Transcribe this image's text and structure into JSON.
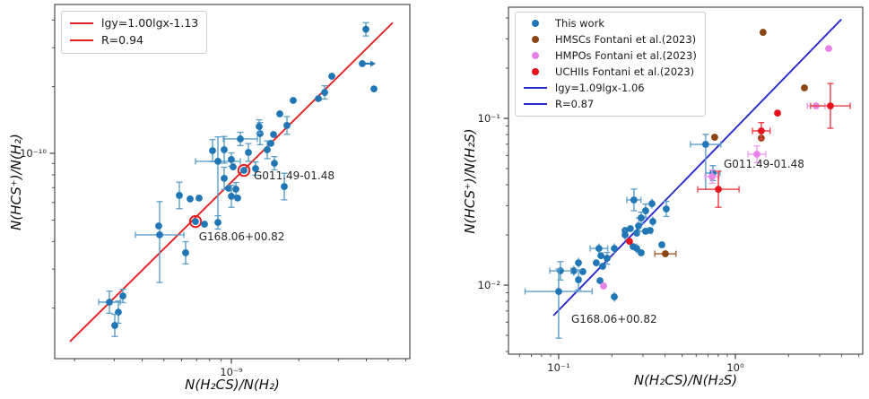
{
  "figure": {
    "background": "#ffffff",
    "frame_color": "#3c3c3c",
    "text_color": "#262626"
  },
  "chart_data": [
    {
      "id": "left-panel",
      "type": "scatter",
      "title": "",
      "xlabel": "N(H₂CS)/N(H₂)",
      "ylabel": "N(HCS⁺)/N(H₂)",
      "xscale": "log",
      "yscale": "log",
      "grid": false,
      "xlim_lg": [
        -9.788,
        -8.204
      ],
      "ylim_lg": [
        -10.927,
        -9.328
      ],
      "xticks": [
        {
          "lg": -9,
          "label": "10⁻⁹"
        }
      ],
      "yticks": [
        {
          "lg": -10,
          "label": "10⁻¹⁰"
        }
      ],
      "legend_position": "upper-left",
      "fit": {
        "label": "lgy=1.00lgx-1.13",
        "r_label": "R=0.94",
        "slope": 1.0,
        "intercept": -1.13,
        "color": "#e32020",
        "lgx_range": [
          -9.72,
          -8.28
        ]
      },
      "series": [
        {
          "name": "This work",
          "color": "#2176b5",
          "ecolor": "#5b9ec9",
          "marker": "circle",
          "points": [
            {
              "lgx": -8.4,
              "lgy": -9.44,
              "ey": 0.03
            },
            {
              "lgx": -8.416,
              "lgy": -9.595,
              "ar": true
            },
            {
              "lgx": -8.364,
              "lgy": -9.709
            },
            {
              "lgx": -8.552,
              "lgy": -9.652
            },
            {
              "lgx": -8.584,
              "lgy": -9.725,
              "ey": 0.03
            },
            {
              "lgx": -8.612,
              "lgy": -9.753
            },
            {
              "lgx": -8.724,
              "lgy": -9.761
            },
            {
              "lgx": -8.784,
              "lgy": -9.822
            },
            {
              "lgx": -8.752,
              "lgy": -9.874,
              "ey": 0.04
            },
            {
              "lgx": -8.812,
              "lgy": -9.915
            },
            {
              "lgx": -8.872,
              "lgy": -9.911,
              "ey": 0.05
            },
            {
              "lgx": -8.96,
              "lgy": -9.935,
              "ex": 0.076,
              "ey": 0.03
            },
            {
              "lgx": -8.924,
              "lgy": -9.996,
              "ey": 0.04
            },
            {
              "lgx": -9.032,
              "lgy": -9.984,
              "ey": 0.06
            },
            {
              "lgx": -9.084,
              "lgy": -9.988,
              "ey": 0.05
            },
            {
              "lgx": -9.06,
              "lgy": -10.036,
              "ex": 0.1,
              "eyt": 0.11,
              "eyb": 0.27
            },
            {
              "lgx": -9.0,
              "lgy": -10.028,
              "ey": 0.03
            },
            {
              "lgx": -8.992,
              "lgy": -10.061
            },
            {
              "lgx": -8.944,
              "lgy": -10.077,
              "c": true
            },
            {
              "lgx": -8.892,
              "lgy": -10.069,
              "ey": 0.03
            },
            {
              "lgx": -8.84,
              "lgy": -9.984,
              "ey": 0.04
            },
            {
              "lgx": -8.808,
              "lgy": -10.045,
              "ey": 0.03
            },
            {
              "lgx": -8.764,
              "lgy": -10.15,
              "ey": 0.06
            },
            {
              "lgx": -9.032,
              "lgy": -10.113,
              "ey": 0.05
            },
            {
              "lgx": -9.012,
              "lgy": -10.158
            },
            {
              "lgx": -8.98,
              "lgy": -10.162,
              "ey": 0.03
            },
            {
              "lgx": -9.0,
              "lgy": -10.194,
              "ey": 0.05
            },
            {
              "lgx": -8.972,
              "lgy": -10.202
            },
            {
              "lgx": -9.232,
              "lgy": -10.19,
              "ey": 0.06
            },
            {
              "lgx": -9.184,
              "lgy": -10.206
            },
            {
              "lgx": -9.144,
              "lgy": -10.202
            },
            {
              "lgx": -9.16,
              "lgy": -10.308,
              "c": true
            },
            {
              "lgx": -9.12,
              "lgy": -10.32
            },
            {
              "lgx": -9.06,
              "lgy": -10.312,
              "ey": 0.03
            },
            {
              "lgx": -9.204,
              "lgy": -10.449,
              "ey": 0.05
            },
            {
              "lgx": -9.32,
              "lgy": -10.368,
              "ex": 0.108,
              "eyt": 0.15,
              "eyb": 0.215
            },
            {
              "lgx": -9.324,
              "lgy": -10.328
            },
            {
              "lgx": -9.544,
              "lgy": -10.672,
              "ex": 0.048,
              "ey": 0.05
            },
            {
              "lgx": -9.484,
              "lgy": -10.644,
              "ey": 0.03
            },
            {
              "lgx": -9.504,
              "lgy": -10.717,
              "ey": 0.05
            },
            {
              "lgx": -9.52,
              "lgy": -10.777,
              "ey": 0.05
            },
            {
              "lgx": -8.876,
              "lgy": -9.879,
              "ey": 0.03
            },
            {
              "lgx": -8.824,
              "lgy": -9.955
            }
          ]
        }
      ],
      "annotations": [
        {
          "text": "G011.49-01.48",
          "lgx": -8.9,
          "lgy": -10.1
        },
        {
          "text": "G168.06+00.82",
          "lgx": -9.145,
          "lgy": -10.375
        }
      ]
    },
    {
      "id": "right-panel",
      "type": "scatter",
      "title": "",
      "xlabel": "N(H₂CS)/N(H₂S)",
      "ylabel": "N(HCS⁺)/N(H₂S)",
      "xscale": "log",
      "yscale": "log",
      "grid": false,
      "xlim_lg": [
        -1.284,
        0.721
      ],
      "ylim_lg": [
        -2.414,
        -0.333
      ],
      "xticks": [
        {
          "lg": -1,
          "label": "10⁻¹"
        },
        {
          "lg": 0,
          "label": "10⁰"
        }
      ],
      "yticks": [
        {
          "lg": -1,
          "label": "10⁻¹"
        },
        {
          "lg": -2,
          "label": "10⁻²"
        }
      ],
      "legend_position": "upper-left",
      "fit": {
        "label": "lgy=1.09lgx-1.06",
        "r_label": "R=0.87",
        "slope": 1.09,
        "intercept": -1.06,
        "color": "#2a2acd",
        "lgx_range": [
          -1.03,
          0.6
        ]
      },
      "series": [
        {
          "name": "This work",
          "color": "#2176b5",
          "ecolor": "#5b9ec9",
          "marker": "circle",
          "points": [
            {
              "lgx": -0.168,
              "lgy": -1.156,
              "exl": 0.086,
              "exr": 0.086,
              "eyt": 0.06,
              "eyb": 0.27
            },
            {
              "lgx": -0.127,
              "lgy": -1.328,
              "ex": 0.04,
              "ey": 0.045
            },
            {
              "lgx": -0.574,
              "lgy": -1.489,
              "ex": 0.04,
              "ey": 0.065
            },
            {
              "lgx": -0.508,
              "lgy": -1.554,
              "ey": 0.04
            },
            {
              "lgx": -0.472,
              "lgy": -1.511,
              "ey": 0.03
            },
            {
              "lgx": -0.533,
              "lgy": -1.597,
              "ex": 0.03,
              "ey": 0.035
            },
            {
              "lgx": -0.467,
              "lgy": -1.618,
              "ey": 0.03
            },
            {
              "lgx": -0.391,
              "lgy": -1.543,
              "ey": 0.045
            },
            {
              "lgx": -0.548,
              "lgy": -1.645,
              "ey": 0.03
            },
            {
              "lgx": -0.624,
              "lgy": -1.672
            },
            {
              "lgx": -0.594,
              "lgy": -1.661
            },
            {
              "lgx": -0.558,
              "lgy": -1.688
            },
            {
              "lgx": -0.508,
              "lgy": -1.677,
              "ex": 0.035
            },
            {
              "lgx": -0.482,
              "lgy": -1.672
            },
            {
              "lgx": -0.624,
              "lgy": -1.699,
              "ey": 0.03
            },
            {
              "lgx": -0.579,
              "lgy": -1.769
            },
            {
              "lgx": -0.558,
              "lgy": -1.78,
              "ey": 0.03
            },
            {
              "lgx": -0.533,
              "lgy": -1.806
            },
            {
              "lgx": -0.416,
              "lgy": -1.758
            },
            {
              "lgx": -0.685,
              "lgy": -1.78,
              "ey": 0.03
            },
            {
              "lgx": -0.772,
              "lgy": -1.78,
              "ex": 0.05,
              "ey": 0.03
            },
            {
              "lgx": -0.761,
              "lgy": -1.823
            },
            {
              "lgx": -0.726,
              "lgy": -1.839,
              "ey": 0.035
            },
            {
              "lgx": -0.787,
              "lgy": -1.866
            },
            {
              "lgx": -0.751,
              "lgy": -1.887
            },
            {
              "lgx": -0.888,
              "lgy": -1.866,
              "ey": 0.03
            },
            {
              "lgx": -0.914,
              "lgy": -1.914,
              "ey": 0.03
            },
            {
              "lgx": -0.863,
              "lgy": -1.919
            },
            {
              "lgx": -0.99,
              "lgy": -1.914,
              "ex": 0.06,
              "ey": 0.055
            },
            {
              "lgx": -0.888,
              "lgy": -1.968,
              "ey": 0.06
            },
            {
              "lgx": -1.0,
              "lgy": -2.038,
              "exl": 0.19,
              "exr": 0.19,
              "eyt": 0.135,
              "eyb": 0.28
            },
            {
              "lgx": -0.766,
              "lgy": -1.973
            },
            {
              "lgx": -0.685,
              "lgy": -2.07,
              "ey": 0.03
            }
          ]
        },
        {
          "name": "HMSCs Fontani et al.(2023)",
          "color": "#8b4513",
          "ecolor": "#9c5b2e",
          "marker": "circle",
          "points": [
            {
              "lgx": 0.157,
              "lgy": -0.484
            },
            {
              "lgx": 0.391,
              "lgy": -0.817
            },
            {
              "lgx": -0.117,
              "lgy": -1.113
            },
            {
              "lgx": 0.147,
              "lgy": -1.118
            },
            {
              "lgx": -0.396,
              "lgy": -1.812,
              "ex": 0.06
            }
          ]
        },
        {
          "name": "HMPOs Fontani et al.(2023)",
          "color": "#e682e6",
          "ecolor": "#ee9aee",
          "marker": "circle",
          "points": [
            {
              "lgx": 0.528,
              "lgy": -0.581
            },
            {
              "lgx": 0.457,
              "lgy": -0.925,
              "ex": 0.05
            },
            {
              "lgx": 0.122,
              "lgy": -1.215,
              "ex": 0.05,
              "ey": 0.05
            },
            {
              "lgx": -0.132,
              "lgy": -1.349,
              "ex": 0.04,
              "ey": 0.04
            },
            {
              "lgx": -0.746,
              "lgy": -2.005
            }
          ]
        },
        {
          "name": "UCHIIs Fontani et al.(2023)",
          "color": "#e8121c",
          "ecolor": "#ea3a42",
          "marker": "circle",
          "points": [
            {
              "lgx": 0.538,
              "lgy": -0.925,
              "ex": 0.112,
              "ey": 0.134
            },
            {
              "lgx": 0.239,
              "lgy": -0.968
            },
            {
              "lgx": 0.147,
              "lgy": -1.075,
              "ex": 0.05,
              "ey": 0.05
            },
            {
              "lgx": -0.096,
              "lgy": -1.425,
              "ex": 0.117,
              "ey": 0.108
            },
            {
              "lgx": -0.599,
              "lgy": -1.737
            }
          ]
        }
      ],
      "annotations": [
        {
          "text": "G011.49-01.48",
          "lgx": -0.066,
          "lgy": -1.274
        },
        {
          "text": "G168.06+00.82",
          "lgx": -0.929,
          "lgy": -2.204
        }
      ]
    }
  ]
}
